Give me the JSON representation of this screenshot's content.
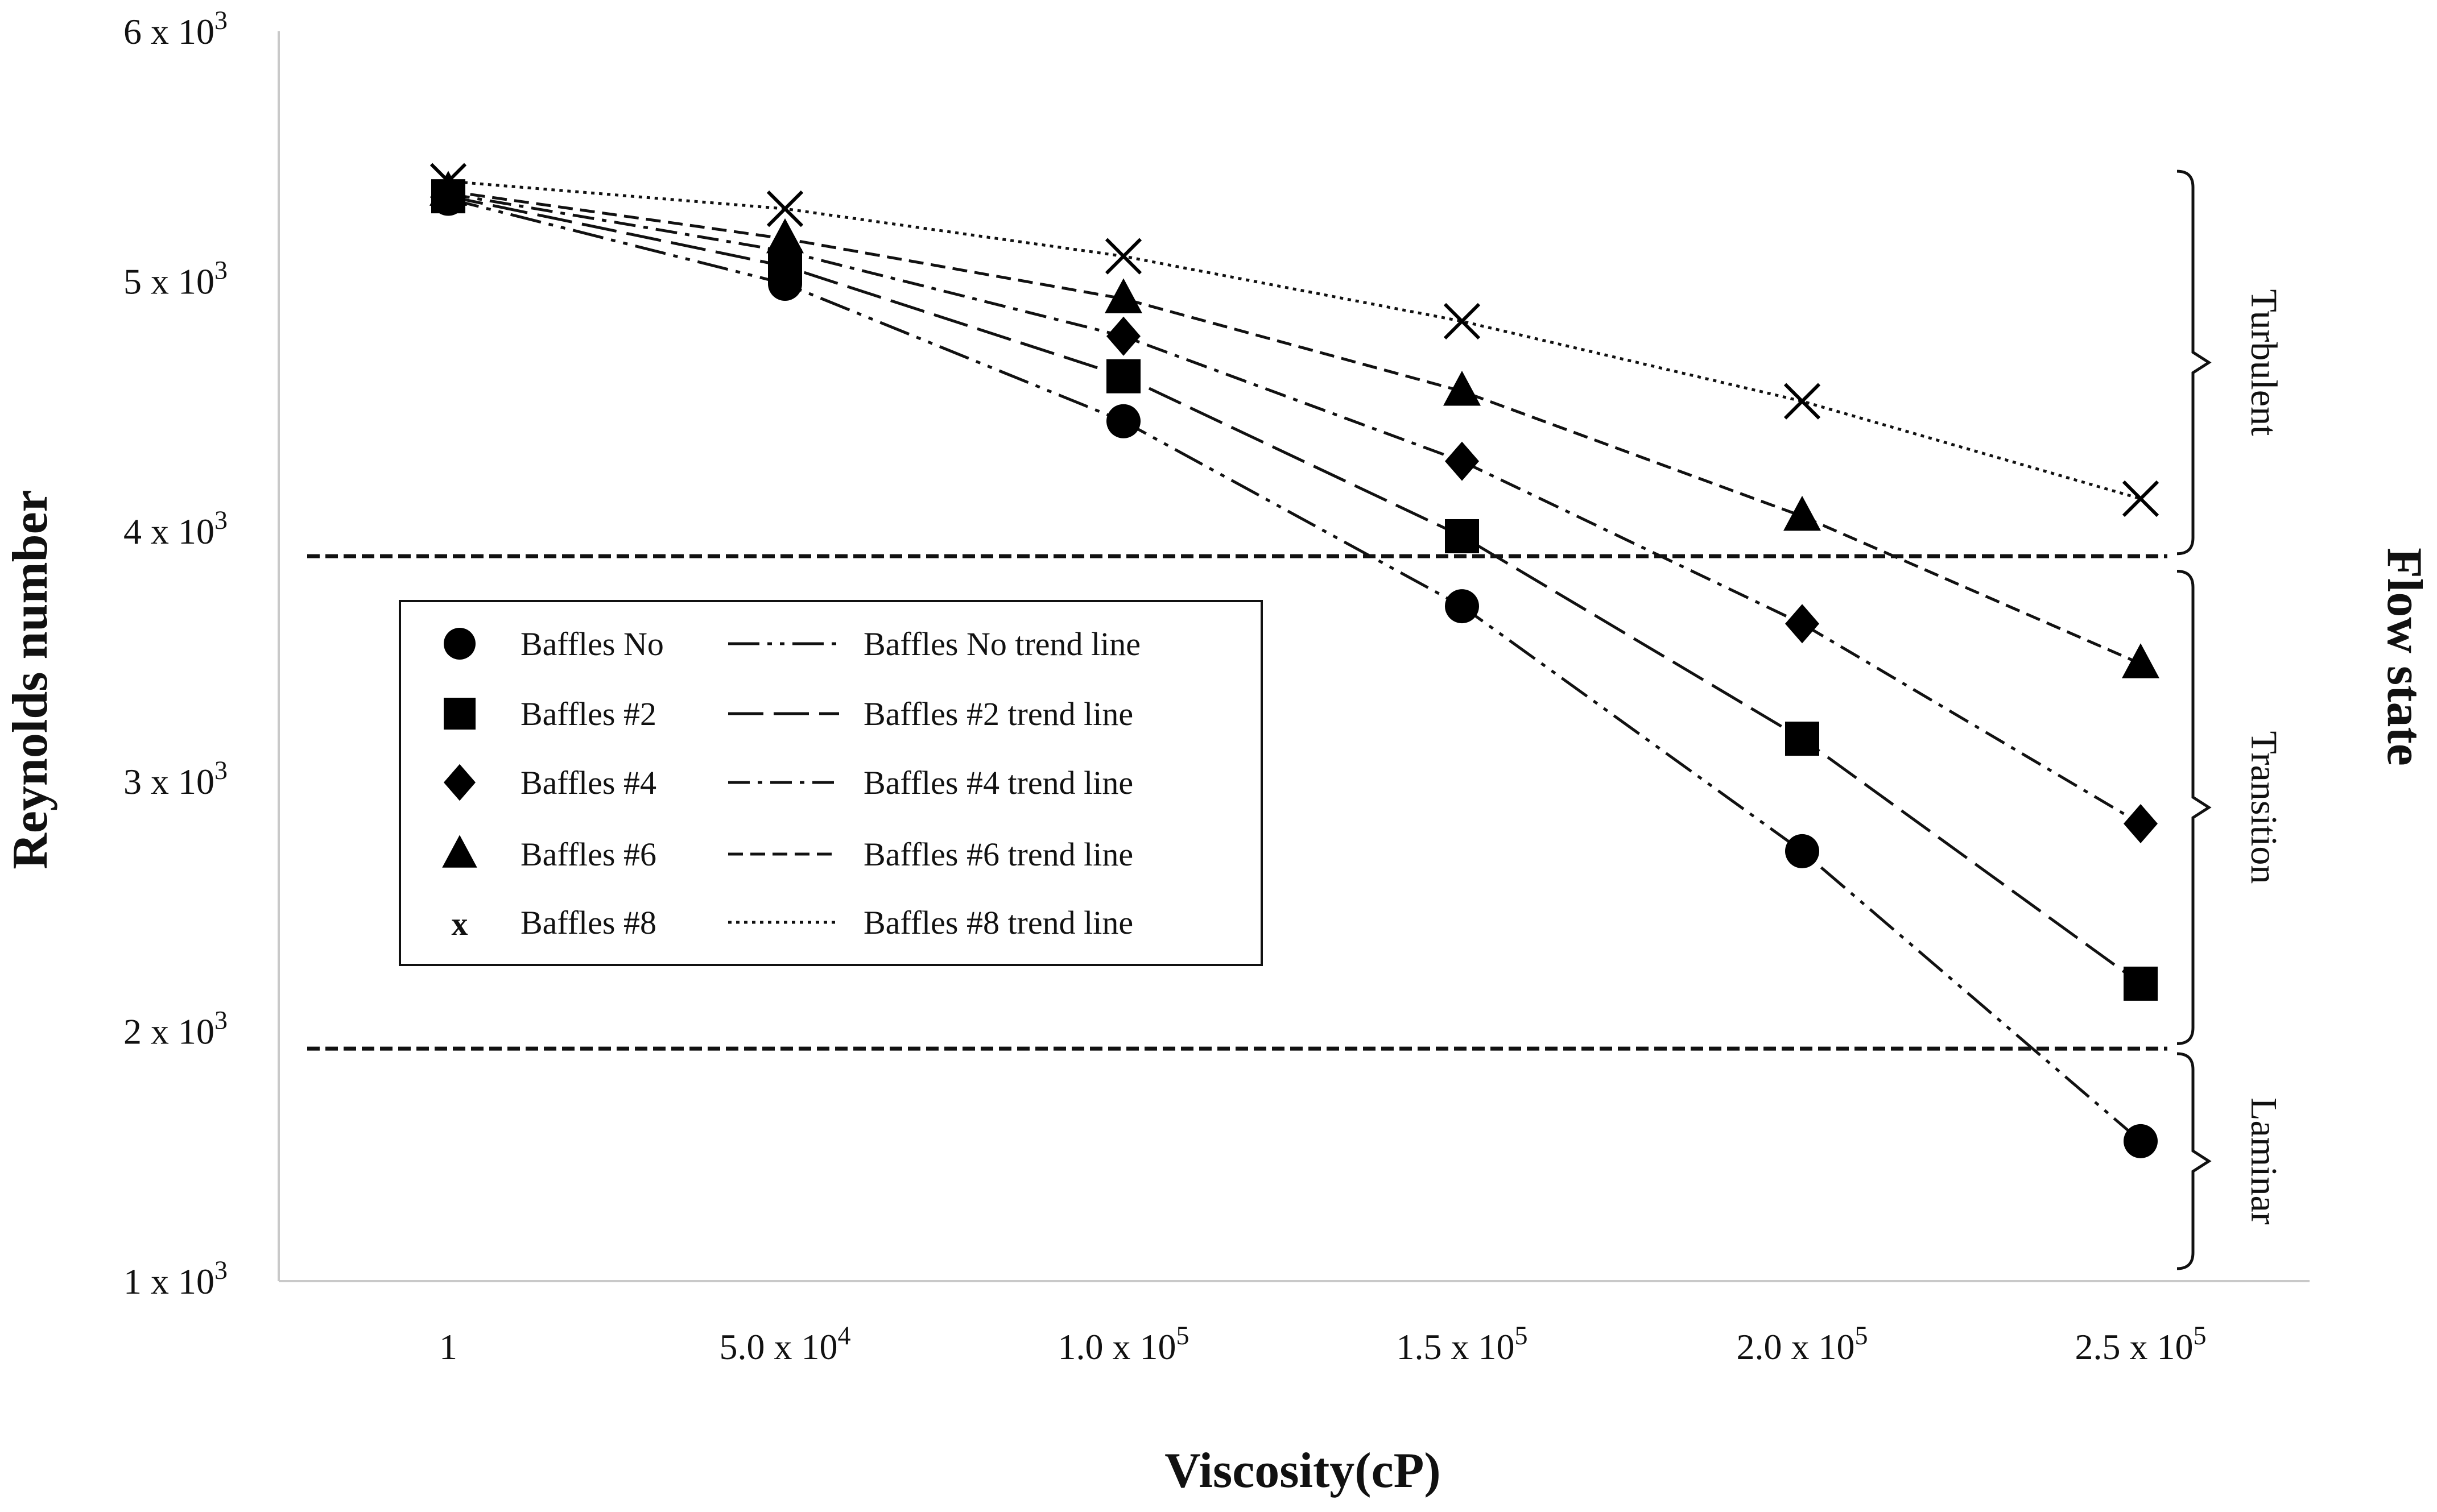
{
  "chart_data": {
    "type": "line",
    "title": "",
    "xlabel": "Viscosity(cP)",
    "ylabel": "Reynolds number",
    "right_label": "Flow state",
    "categories": [
      "1",
      "5.0 x 10^4",
      "1.0 x 10^5",
      "1.5 x 10^5",
      "2.0 x 10^5",
      "2.5 x 10^5"
    ],
    "x_tick_labels": [
      {
        "base": "1",
        "exp": ""
      },
      {
        "base": "5.0 x 10",
        "exp": "4"
      },
      {
        "base": "1.0 x 10",
        "exp": "5"
      },
      {
        "base": "1.5 x 10",
        "exp": "5"
      },
      {
        "base": "2.0 x 10",
        "exp": "5"
      },
      {
        "base": "2.5 x 10",
        "exp": "5"
      }
    ],
    "ylim": [
      1000,
      6000
    ],
    "y_ticks": [
      1000,
      2000,
      3000,
      4000,
      5000,
      6000
    ],
    "y_tick_labels": [
      {
        "base": "1 x 10",
        "exp": "3"
      },
      {
        "base": "2 x 10",
        "exp": "3"
      },
      {
        "base": "3 x 10",
        "exp": "3"
      },
      {
        "base": "4 x 10",
        "exp": "3"
      },
      {
        "base": "5 x 10",
        "exp": "3"
      },
      {
        "base": "6 x 10",
        "exp": "3"
      }
    ],
    "grid": false,
    "legend_position": "left-center",
    "threshold_lines": [
      {
        "name": "transition-upper",
        "value": 3900
      },
      {
        "name": "transition-lower",
        "value": 1930
      }
    ],
    "series": [
      {
        "name": "Baffles No",
        "marker": "circle",
        "trend_label": "Baffles No trend line",
        "dash": "dashdotdot",
        "values": [
          5330,
          4990,
          4440,
          3700,
          2720,
          1560
        ]
      },
      {
        "name": "Baffles #2",
        "marker": "square",
        "trend_label": "Baffles #2 trend line",
        "dash": "longdash",
        "values": [
          5340,
          5060,
          4620,
          3980,
          3170,
          2190
        ]
      },
      {
        "name": "Baffles #4",
        "marker": "diamond",
        "trend_label": "Baffles #4 trend line",
        "dash": "dashdot",
        "values": [
          5350,
          5120,
          4780,
          4280,
          3630,
          2830
        ]
      },
      {
        "name": "Baffles #6",
        "marker": "triangle",
        "trend_label": "Baffles #6 trend line",
        "dash": "shortdash",
        "values": [
          5360,
          5170,
          4930,
          4560,
          4060,
          3470
        ]
      },
      {
        "name": "Baffles #8",
        "marker": "x",
        "trend_label": "Baffles #8 trend line",
        "dash": "dotted",
        "values": [
          5400,
          5290,
          5100,
          4840,
          4520,
          4130
        ]
      }
    ],
    "legend_x_symbol": "x",
    "flow_states": [
      {
        "label": "Turbulent",
        "from": 3910,
        "to": 5440
      },
      {
        "label": "Transition",
        "from": 1950,
        "to": 3840
      },
      {
        "label": "Laminar",
        "from": 1050,
        "to": 1910
      }
    ]
  }
}
